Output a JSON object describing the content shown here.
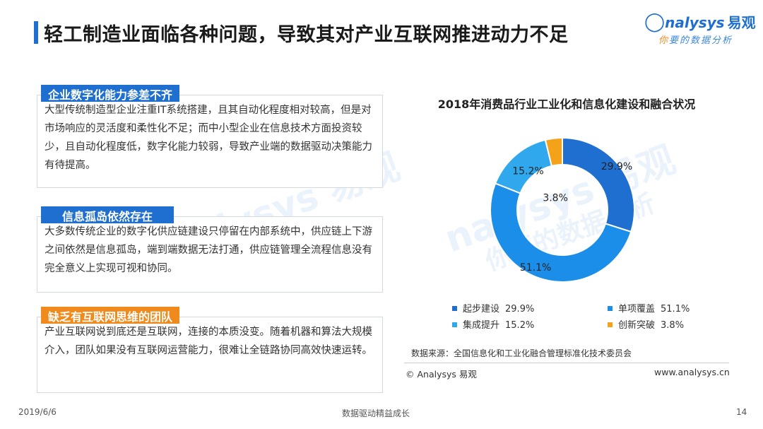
{
  "slide": {
    "title": "轻工制造业面临各种问题，导致其对产业互联网推进动力不足",
    "logo_text": "nalysys",
    "logo_cn": "易观",
    "logo_tag_first": "你",
    "logo_tag_rest": "要的数据分析",
    "watermark_1": "nalysys 易观",
    "watermark_2": "你要的数据分析"
  },
  "sections": [
    {
      "heading": "企业数字化能力参差不齐",
      "body": "大型传统制造型企业注重IT系统搭建，且其自动化程度相对较高，但是对市场响应的灵活度和柔性化不足；而中小型企业在信息技术方面投资较少，且自动化程度低，数字化能力较弱，导致产业端的数据驱动决策能力有待提高。"
    },
    {
      "heading": "信息孤岛依然存在",
      "body": "大多数传统企业的数字化供应链建设只停留在内部系统中，供应链上下游之间依然是信息孤岛，端到端数据无法打通，供应链管理全流程信息没有完全意义上实现可视和协同。"
    },
    {
      "heading": "缺乏有互联网思维的团队",
      "body": "产业互联网说到底还是互联网，连接的本质没变。随着机器和算法大规模介入，团队如果没有互联网运营能力，很难让全链路协同高效快速运转。"
    }
  ],
  "chart_data": {
    "type": "pie",
    "variant": "donut",
    "title": "2018年消费品行业工业化和信息化建设和融合状况",
    "categories": [
      "起步建设",
      "单项覆盖",
      "集成提升",
      "创新突破"
    ],
    "values": [
      29.9,
      51.1,
      15.2,
      3.8
    ],
    "unit": "%",
    "data_labels": [
      "29.9%",
      "51.1%",
      "15.2%",
      "3.8%"
    ],
    "legend_values": [
      "29.9%",
      "51.1%",
      "15.2%",
      "3.8%"
    ],
    "colors": [
      "#1f6fd1",
      "#1a8ee8",
      "#2fa8ee",
      "#f5a21b"
    ],
    "legend_position": "bottom",
    "start_angle_deg": 0,
    "direction": "clockwise"
  },
  "source": "数据来源：全国信息化和工业化融合管理标准化技术委员会",
  "copyright": "© Analysys 易观",
  "website": "www.analysys.cn",
  "footer": {
    "date": "2019/6/6",
    "center": "数据驱动精益成长",
    "page": "14"
  }
}
